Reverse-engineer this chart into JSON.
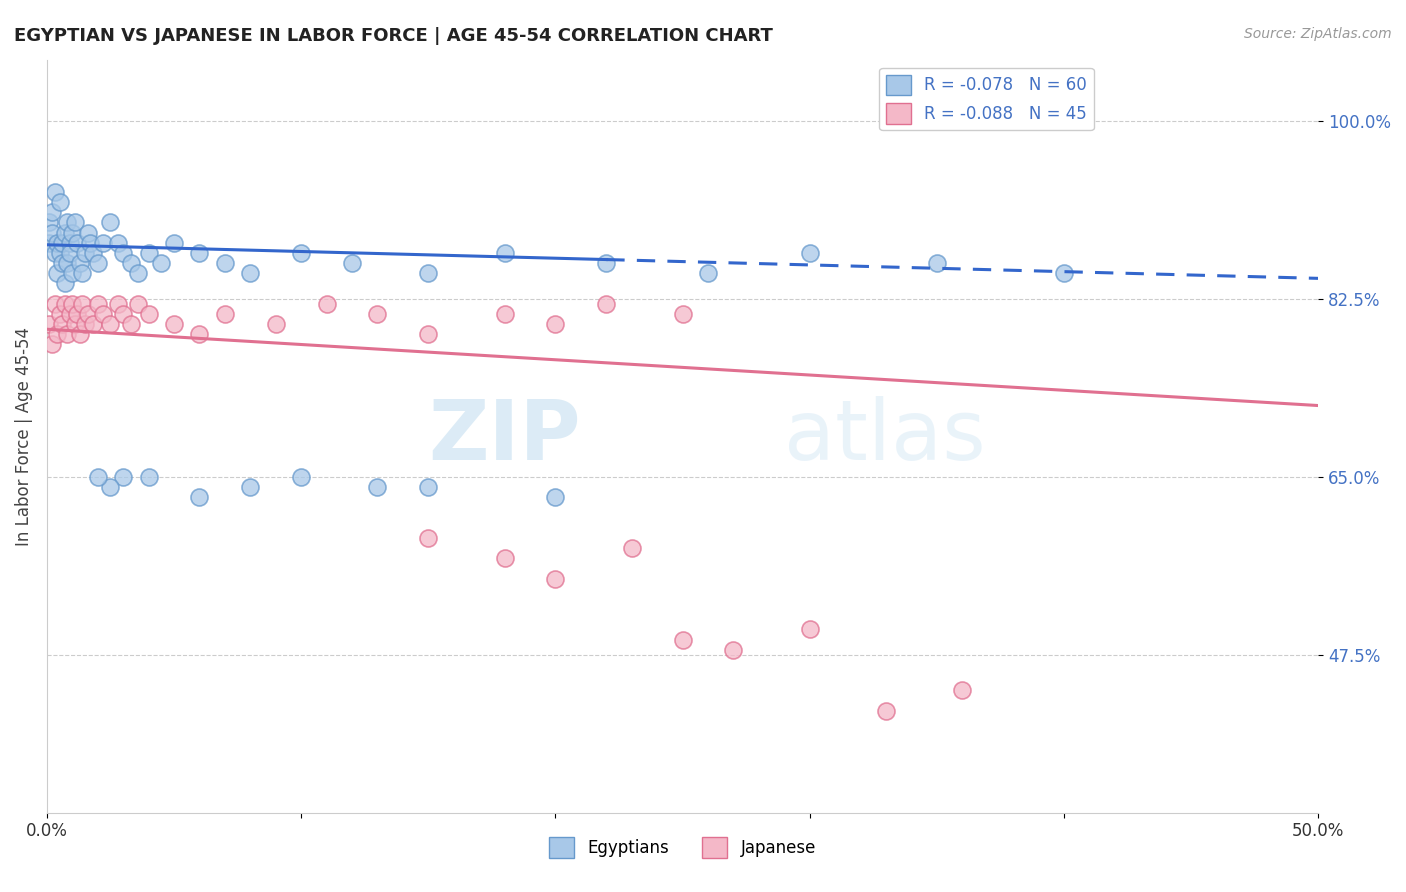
{
  "title": "EGYPTIAN VS JAPANESE IN LABOR FORCE | AGE 45-54 CORRELATION CHART",
  "source": "Source: ZipAtlas.com",
  "ylabel": "In Labor Force | Age 45-54",
  "xlim": [
    0.0,
    0.5
  ],
  "ylim": [
    0.32,
    1.06
  ],
  "yticks_right": [
    0.475,
    0.65,
    0.825,
    1.0
  ],
  "yticklabels_right": [
    "47.5%",
    "65.0%",
    "82.5%",
    "100.0%"
  ],
  "egyptian_color": "#a8c8e8",
  "japanese_color": "#f4b8c8",
  "egyptian_edge": "#6699cc",
  "japanese_edge": "#e07090",
  "trend_blue": "#3366cc",
  "trend_pink": "#e07090",
  "r_egyptian": -0.078,
  "n_egyptian": 60,
  "r_japanese": -0.088,
  "n_japanese": 45,
  "background_color": "#ffffff",
  "grid_color": "#cccccc",
  "blue_trend_solid_end": 0.22,
  "egyptian_x": [
    0.001,
    0.001,
    0.002,
    0.002,
    0.003,
    0.003,
    0.004,
    0.004,
    0.005,
    0.005,
    0.006,
    0.006,
    0.007,
    0.007,
    0.008,
    0.008,
    0.009,
    0.009,
    0.01,
    0.01,
    0.011,
    0.012,
    0.013,
    0.014,
    0.015,
    0.016,
    0.017,
    0.018,
    0.02,
    0.022,
    0.025,
    0.028,
    0.03,
    0.033,
    0.036,
    0.04,
    0.045,
    0.05,
    0.06,
    0.07,
    0.08,
    0.1,
    0.12,
    0.15,
    0.18,
    0.22,
    0.26,
    0.3,
    0.35,
    0.4,
    0.15,
    0.2,
    0.06,
    0.08,
    0.1,
    0.13,
    0.04,
    0.03,
    0.025,
    0.02
  ],
  "egyptian_y": [
    0.88,
    0.9,
    0.89,
    0.91,
    0.87,
    0.93,
    0.88,
    0.85,
    0.87,
    0.92,
    0.86,
    0.88,
    0.89,
    0.84,
    0.9,
    0.86,
    0.88,
    0.87,
    0.89,
    0.85,
    0.9,
    0.88,
    0.86,
    0.85,
    0.87,
    0.89,
    0.88,
    0.87,
    0.86,
    0.88,
    0.9,
    0.88,
    0.87,
    0.86,
    0.85,
    0.87,
    0.86,
    0.88,
    0.87,
    0.86,
    0.85,
    0.87,
    0.86,
    0.85,
    0.87,
    0.86,
    0.85,
    0.87,
    0.86,
    0.85,
    0.64,
    0.63,
    0.63,
    0.64,
    0.65,
    0.64,
    0.65,
    0.65,
    0.64,
    0.65
  ],
  "japanese_x": [
    0.001,
    0.002,
    0.003,
    0.004,
    0.005,
    0.006,
    0.007,
    0.008,
    0.009,
    0.01,
    0.011,
    0.012,
    0.013,
    0.014,
    0.015,
    0.016,
    0.018,
    0.02,
    0.022,
    0.025,
    0.028,
    0.03,
    0.033,
    0.036,
    0.04,
    0.05,
    0.06,
    0.07,
    0.09,
    0.11,
    0.13,
    0.15,
    0.18,
    0.2,
    0.22,
    0.25,
    0.15,
    0.18,
    0.2,
    0.23,
    0.25,
    0.27,
    0.3,
    0.33,
    0.36
  ],
  "japanese_y": [
    0.8,
    0.78,
    0.82,
    0.79,
    0.81,
    0.8,
    0.82,
    0.79,
    0.81,
    0.82,
    0.8,
    0.81,
    0.79,
    0.82,
    0.8,
    0.81,
    0.8,
    0.82,
    0.81,
    0.8,
    0.82,
    0.81,
    0.8,
    0.82,
    0.81,
    0.8,
    0.79,
    0.81,
    0.8,
    0.82,
    0.81,
    0.79,
    0.81,
    0.8,
    0.82,
    0.81,
    0.59,
    0.57,
    0.55,
    0.58,
    0.49,
    0.48,
    0.5,
    0.42,
    0.44
  ],
  "blue_trend_y0": 0.878,
  "blue_trend_y1": 0.845,
  "pink_trend_y0": 0.795,
  "pink_trend_y1": 0.72
}
